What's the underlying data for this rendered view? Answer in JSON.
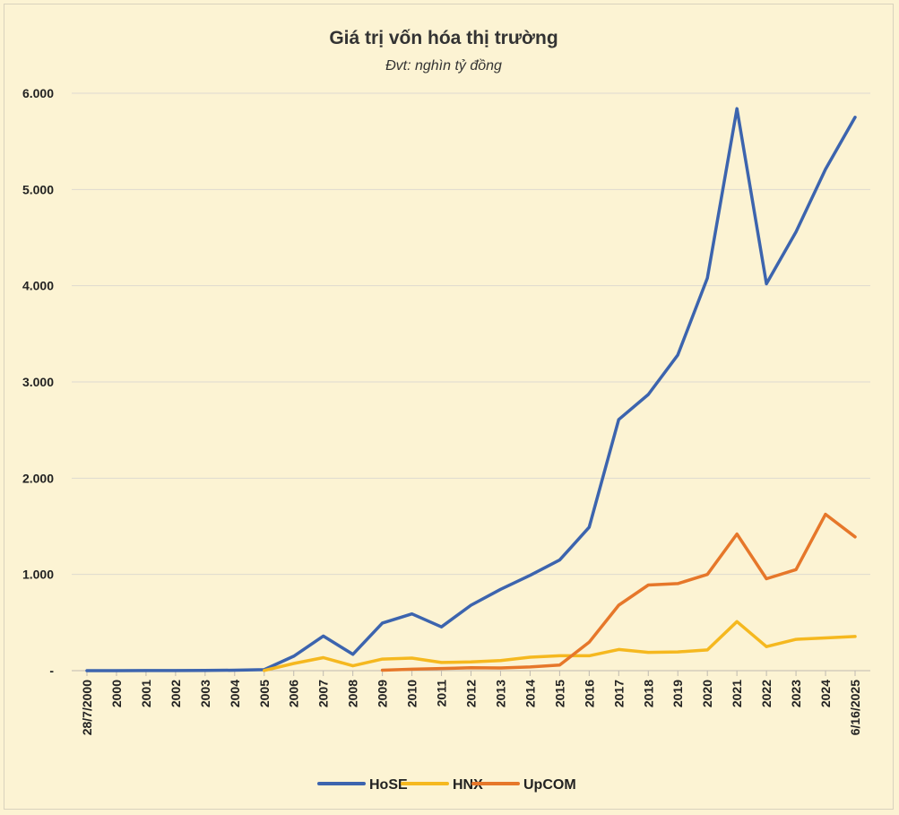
{
  "chart_data": {
    "type": "line",
    "title": "Giá trị vốn hóa thị trường",
    "subtitle": "Đvt: nghìn tỷ đồng",
    "xlabel": "",
    "ylabel": "",
    "categories": [
      "28/7/2000",
      "2000",
      "2001",
      "2002",
      "2003",
      "2004",
      "2005",
      "2006",
      "2007",
      "2008",
      "2009",
      "2010",
      "2011",
      "2012",
      "2013",
      "2014",
      "2015",
      "2016",
      "2017",
      "2018",
      "2019",
      "2020",
      "2021",
      "2022",
      "2023",
      "2024",
      "6/16/2025"
    ],
    "ylim": [
      0,
      6000
    ],
    "yticks": [
      0,
      1000,
      2000,
      3000,
      4000,
      5000,
      6000
    ],
    "ytick_labels": [
      "-",
      "1.000",
      "2.000",
      "3.000",
      "4.000",
      "5.000",
      "6.000"
    ],
    "grid": true,
    "legend_position": "bottom",
    "series": [
      {
        "name": "HoSE",
        "color": "#3c64ae",
        "values": [
          0,
          0,
          1,
          1,
          2,
          5,
          10,
          150,
          360,
          170,
          495,
          590,
          455,
          680,
          845,
          990,
          1150,
          1490,
          2610,
          2870,
          3280,
          4080,
          5840,
          4020,
          4560,
          5210,
          5750
        ]
      },
      {
        "name": "HNX",
        "color": "#f5b81f",
        "values": [
          null,
          null,
          null,
          null,
          null,
          null,
          2,
          75,
          135,
          50,
          120,
          130,
          85,
          90,
          105,
          140,
          155,
          155,
          220,
          190,
          195,
          215,
          510,
          250,
          325,
          340,
          355
        ]
      },
      {
        "name": "UpCOM",
        "color": "#e6772a",
        "values": [
          null,
          null,
          null,
          null,
          null,
          null,
          null,
          null,
          null,
          null,
          5,
          15,
          22,
          30,
          28,
          38,
          58,
          295,
          680,
          890,
          905,
          1000,
          1420,
          955,
          1050,
          1625,
          1390
        ]
      }
    ]
  }
}
